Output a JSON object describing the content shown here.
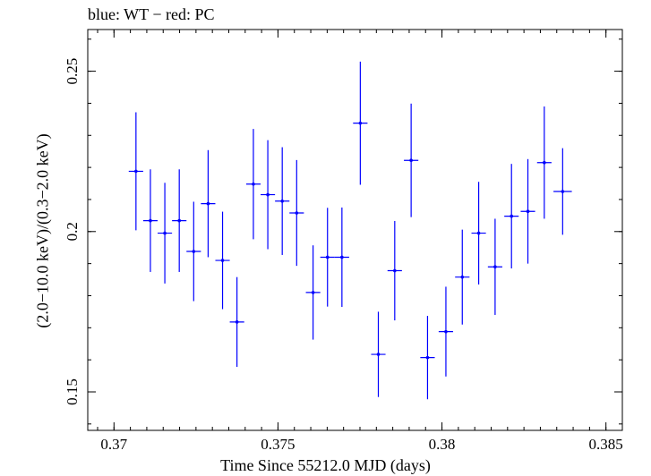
{
  "chart_data": {
    "type": "scatter",
    "title": "blue: WT − red: PC",
    "xlabel": "Time Since 55212.0 MJD (days)",
    "ylabel": "(2.0−10.0 keV)/(0.3−2.0 keV)",
    "xlim": [
      0.3692,
      0.3855
    ],
    "ylim": [
      0.138,
      0.263
    ],
    "xticks": [
      {
        "value": 0.37,
        "label": "0.37"
      },
      {
        "value": 0.375,
        "label": "0.375"
      },
      {
        "value": 0.38,
        "label": "0.38"
      },
      {
        "value": 0.385,
        "label": "0.385"
      }
    ],
    "yticks": [
      {
        "value": 0.15,
        "label": "0.15"
      },
      {
        "value": 0.2,
        "label": "0.2"
      },
      {
        "value": 0.25,
        "label": "0.25"
      }
    ],
    "grid": false,
    "series": [
      {
        "name": "WT",
        "color": "#0000ff",
        "points": [
          {
            "x": 0.37067,
            "xerr": 0.00022,
            "y": 0.2188,
            "yerr": 0.0184
          },
          {
            "x": 0.37111,
            "xerr": 0.00022,
            "y": 0.2034,
            "yerr": 0.016
          },
          {
            "x": 0.37155,
            "xerr": 0.00022,
            "y": 0.1995,
            "yerr": 0.0157
          },
          {
            "x": 0.37199,
            "xerr": 0.00022,
            "y": 0.2034,
            "yerr": 0.016
          },
          {
            "x": 0.37243,
            "xerr": 0.00022,
            "y": 0.1938,
            "yerr": 0.0155
          },
          {
            "x": 0.37287,
            "xerr": 0.00022,
            "y": 0.2087,
            "yerr": 0.0167
          },
          {
            "x": 0.37331,
            "xerr": 0.00022,
            "y": 0.191,
            "yerr": 0.0152
          },
          {
            "x": 0.37375,
            "xerr": 0.00022,
            "y": 0.1718,
            "yerr": 0.014
          },
          {
            "x": 0.37425,
            "xerr": 0.00022,
            "y": 0.2148,
            "yerr": 0.0172
          },
          {
            "x": 0.37469,
            "xerr": 0.00022,
            "y": 0.2115,
            "yerr": 0.017
          },
          {
            "x": 0.37513,
            "xerr": 0.00022,
            "y": 0.2095,
            "yerr": 0.0168
          },
          {
            "x": 0.37557,
            "xerr": 0.00022,
            "y": 0.2058,
            "yerr": 0.0165
          },
          {
            "x": 0.37607,
            "xerr": 0.00022,
            "y": 0.181,
            "yerr": 0.0147
          },
          {
            "x": 0.37651,
            "xerr": 0.00022,
            "y": 0.192,
            "yerr": 0.0154
          },
          {
            "x": 0.37695,
            "xerr": 0.00022,
            "y": 0.192,
            "yerr": 0.0155
          },
          {
            "x": 0.37751,
            "xerr": 0.00022,
            "y": 0.2338,
            "yerr": 0.0192
          },
          {
            "x": 0.37806,
            "xerr": 0.00022,
            "y": 0.1617,
            "yerr": 0.0133
          },
          {
            "x": 0.37856,
            "xerr": 0.00022,
            "y": 0.1878,
            "yerr": 0.0155
          },
          {
            "x": 0.37906,
            "xerr": 0.00022,
            "y": 0.2222,
            "yerr": 0.0177
          },
          {
            "x": 0.37956,
            "xerr": 0.00022,
            "y": 0.1607,
            "yerr": 0.013
          },
          {
            "x": 0.38012,
            "xerr": 0.00022,
            "y": 0.1688,
            "yerr": 0.014
          },
          {
            "x": 0.38062,
            "xerr": 0.00022,
            "y": 0.1858,
            "yerr": 0.0148
          },
          {
            "x": 0.38112,
            "xerr": 0.00022,
            "y": 0.1995,
            "yerr": 0.016
          },
          {
            "x": 0.38162,
            "xerr": 0.00022,
            "y": 0.189,
            "yerr": 0.015
          },
          {
            "x": 0.38212,
            "xerr": 0.00022,
            "y": 0.2048,
            "yerr": 0.0163
          },
          {
            "x": 0.38262,
            "xerr": 0.00022,
            "y": 0.2063,
            "yerr": 0.0163
          },
          {
            "x": 0.38312,
            "xerr": 0.00022,
            "y": 0.2215,
            "yerr": 0.0175
          },
          {
            "x": 0.38368,
            "xerr": 0.00028,
            "y": 0.2125,
            "yerr": 0.0135
          }
        ]
      }
    ]
  }
}
